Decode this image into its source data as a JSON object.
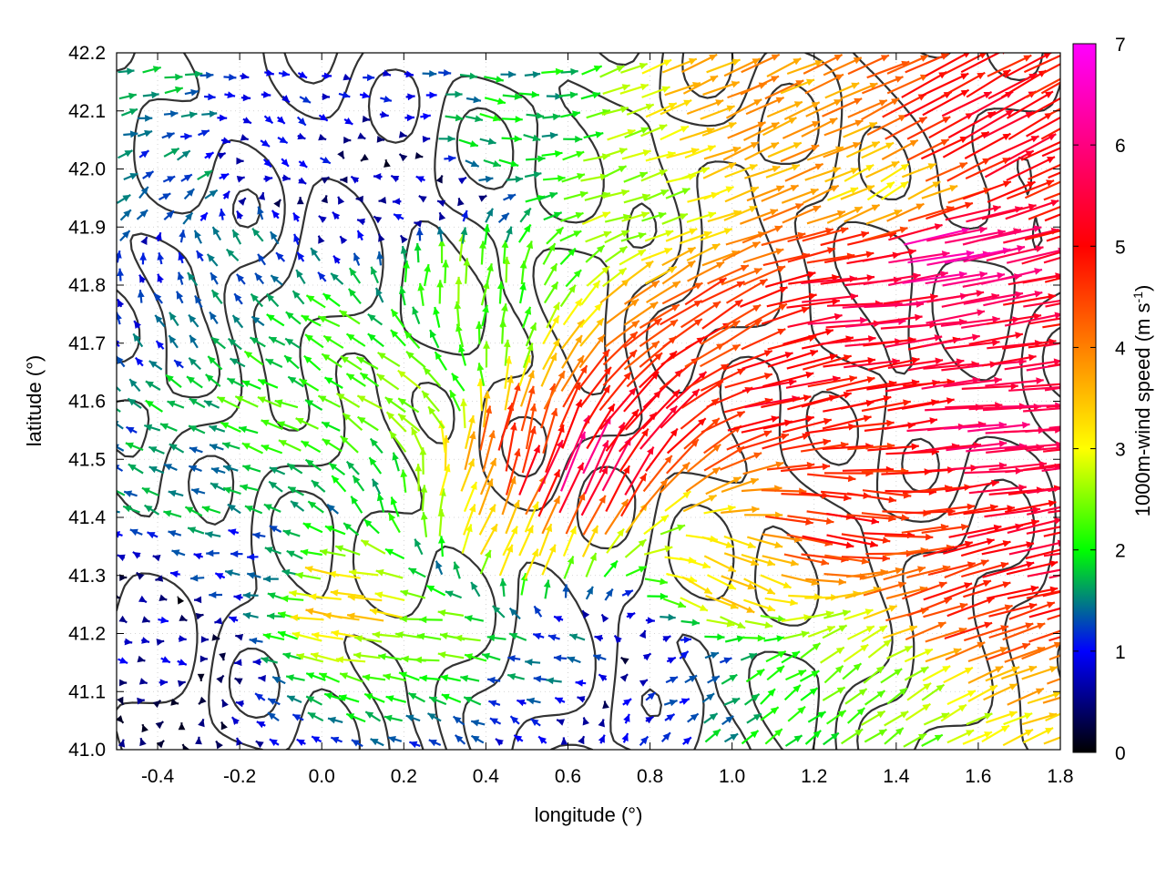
{
  "chart_data": {
    "type": "vector-field",
    "xlabel": "longitude (°)",
    "ylabel": "latitude (°)",
    "xlim": [
      -0.5,
      1.8
    ],
    "ylim": [
      41.0,
      42.2
    ],
    "x_ticks": [
      "-0.4",
      "-0.2",
      "0.0",
      "0.2",
      "0.4",
      "0.6",
      "0.8",
      "1.0",
      "1.2",
      "1.4",
      "1.6",
      "1.8"
    ],
    "y_ticks": [
      "41.0",
      "41.1",
      "41.2",
      "41.3",
      "41.4",
      "41.5",
      "41.6",
      "41.7",
      "41.8",
      "41.9",
      "42.0",
      "42.1",
      "42.2"
    ],
    "grid": true,
    "colorbar": {
      "label": "1000m-wind speed (m s",
      "label_sup": "-1",
      "label_end": ")",
      "range": [
        0,
        7
      ],
      "ticks": [
        "0",
        "1",
        "2",
        "3",
        "4",
        "5",
        "6",
        "7"
      ],
      "colormap": [
        "#000000",
        "#0000ff",
        "#00ff00",
        "#ffff00",
        "#ff8000",
        "#ff0000",
        "#ff00ff"
      ]
    },
    "vectors": [
      {
        "lon": -0.45,
        "lat": 42.12,
        "u": 1.5,
        "v": 0.3
      },
      {
        "lon": -0.35,
        "lat": 41.95,
        "u": 1.2,
        "v": 0.8
      },
      {
        "lon": -0.2,
        "lat": 41.85,
        "u": -1.0,
        "v": 1.2
      },
      {
        "lon": -0.1,
        "lat": 42.05,
        "u": 0.9,
        "v": -0.6
      },
      {
        "lon": 0.05,
        "lat": 41.7,
        "u": -1.8,
        "v": 1.0
      },
      {
        "lon": 0.2,
        "lat": 41.6,
        "u": -2.2,
        "v": 1.5
      },
      {
        "lon": 0.35,
        "lat": 41.8,
        "u": 0.3,
        "v": 2.5
      },
      {
        "lon": 0.5,
        "lat": 41.5,
        "u": 1.0,
        "v": 4.5
      },
      {
        "lon": 0.6,
        "lat": 41.45,
        "u": 2.5,
        "v": 5.5
      },
      {
        "lon": 0.75,
        "lat": 41.55,
        "u": 3.5,
        "v": 4.0
      },
      {
        "lon": 0.9,
        "lat": 41.7,
        "u": 4.0,
        "v": 2.5
      },
      {
        "lon": 1.05,
        "lat": 41.6,
        "u": 5.0,
        "v": 1.0
      },
      {
        "lon": 1.25,
        "lat": 41.75,
        "u": 5.5,
        "v": 0.5
      },
      {
        "lon": 1.45,
        "lat": 41.85,
        "u": 6.2,
        "v": 1.2
      },
      {
        "lon": 1.6,
        "lat": 41.55,
        "u": 5.8,
        "v": 0.4
      },
      {
        "lon": 1.7,
        "lat": 41.35,
        "u": 5.2,
        "v": 1.0
      },
      {
        "lon": 1.5,
        "lat": 41.25,
        "u": 4.5,
        "v": 1.5
      },
      {
        "lon": 1.3,
        "lat": 41.12,
        "u": 2.0,
        "v": 1.5
      },
      {
        "lon": 1.1,
        "lat": 41.05,
        "u": 1.5,
        "v": 1.2
      },
      {
        "lon": 0.85,
        "lat": 41.1,
        "u": 1.0,
        "v": 0.6
      },
      {
        "lon": 0.6,
        "lat": 41.15,
        "u": -1.5,
        "v": 0.2
      },
      {
        "lon": 0.3,
        "lat": 41.2,
        "u": -2.5,
        "v": 0.3
      },
      {
        "lon": 0.1,
        "lat": 41.25,
        "u": -3.5,
        "v": 0.5
      },
      {
        "lon": -0.2,
        "lat": 41.3,
        "u": -1.2,
        "v": 0.2
      },
      {
        "lon": -0.4,
        "lat": 41.2,
        "u": 0.8,
        "v": -0.2
      },
      {
        "lon": -0.3,
        "lat": 41.45,
        "u": -1.5,
        "v": 0.6
      },
      {
        "lon": -0.1,
        "lat": 41.55,
        "u": -2.0,
        "v": 0.8
      },
      {
        "lon": 1.35,
        "lat": 41.95,
        "u": 2.8,
        "v": 1.4
      },
      {
        "lon": 1.55,
        "lat": 42.05,
        "u": 4.5,
        "v": 2.5
      },
      {
        "lon": 1.0,
        "lat": 42.1,
        "u": 3.5,
        "v": 1.5
      },
      {
        "lon": 0.7,
        "lat": 41.95,
        "u": 2.5,
        "v": 0.8
      },
      {
        "lon": 0.4,
        "lat": 42.05,
        "u": 1.8,
        "v": -0.4
      },
      {
        "lon": 0.2,
        "lat": 41.95,
        "u": -0.8,
        "v": 0.2
      },
      {
        "lon": 0.95,
        "lat": 41.3,
        "u": 3.0,
        "v": -1.5
      },
      {
        "lon": 1.2,
        "lat": 41.4,
        "u": 4.8,
        "v": -0.8
      },
      {
        "lon": 0.45,
        "lat": 41.35,
        "u": 1.5,
        "v": 3.0
      }
    ]
  }
}
